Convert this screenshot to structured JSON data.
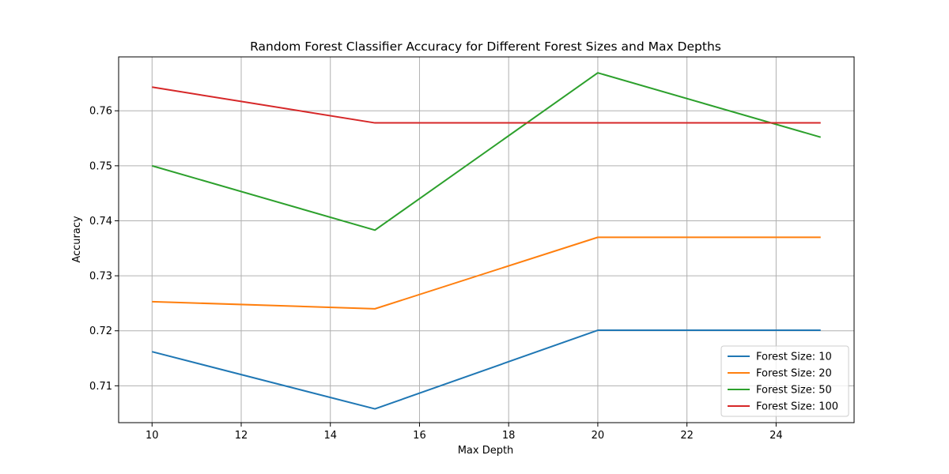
{
  "chart_data": {
    "type": "line",
    "title": "Random Forest Classifier Accuracy for Different Forest Sizes and Max Depths",
    "xlabel": "Max Depth",
    "ylabel": "Accuracy",
    "xlim": [
      9.25,
      25.75
    ],
    "ylim": [
      0.7033,
      0.7698
    ],
    "xticks": [
      10,
      12,
      14,
      16,
      18,
      20,
      22,
      24
    ],
    "yticks": [
      0.71,
      0.72,
      0.73,
      0.74,
      0.75,
      0.76
    ],
    "grid": true,
    "legend_position": "lower-right",
    "x": [
      10,
      15,
      20,
      25
    ],
    "series": [
      {
        "name": "Forest Size: 10",
        "color": "#1f77b4",
        "values": [
          0.7162,
          0.7058,
          0.7201,
          0.7201
        ]
      },
      {
        "name": "Forest Size: 20",
        "color": "#ff7f0e",
        "values": [
          0.7253,
          0.724,
          0.737,
          0.737
        ]
      },
      {
        "name": "Forest Size: 50",
        "color": "#2ca02c",
        "values": [
          0.75,
          0.7383,
          0.7669,
          0.7552
        ]
      },
      {
        "name": "Forest Size: 100",
        "color": "#d62728",
        "values": [
          0.7643,
          0.7578,
          0.7578,
          0.7578
        ]
      }
    ]
  }
}
